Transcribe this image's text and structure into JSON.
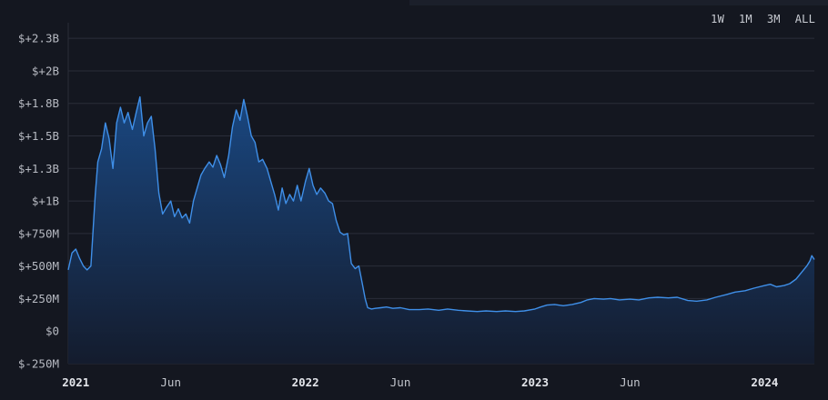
{
  "range_buttons": [
    "1W",
    "1M",
    "3M",
    "ALL"
  ],
  "colors": {
    "background": "#141720",
    "line": "#3f8fe8",
    "area_top": "#1a4a86",
    "area_bottom": "#141c2e",
    "grid": "#2a2e39"
  },
  "chart_data": {
    "type": "area",
    "title": "",
    "xlabel": "",
    "ylabel": "",
    "ylim": [
      -250,
      2300
    ],
    "y_unit": "million USD",
    "y_ticks": [
      {
        "value": -250,
        "label": "$-250M"
      },
      {
        "value": 0,
        "label": "$0"
      },
      {
        "value": 250,
        "label": "$+250M"
      },
      {
        "value": 500,
        "label": "$+500M"
      },
      {
        "value": 750,
        "label": "$+750M"
      },
      {
        "value": 1000,
        "label": "$+1B"
      },
      {
        "value": 1250,
        "label": "$+1.3B"
      },
      {
        "value": 1500,
        "label": "$+1.5B"
      },
      {
        "value": 1750,
        "label": "$+1.8B"
      },
      {
        "value": 2000,
        "label": "$+2B"
      },
      {
        "value": 2250,
        "label": "$+2.3B"
      }
    ],
    "xlim": [
      "2020-12-20",
      "2024-03-20"
    ],
    "x_ticks": [
      {
        "date": "2021-01-01",
        "label": "2021",
        "major": true
      },
      {
        "date": "2021-06-01",
        "label": "Jun",
        "major": false
      },
      {
        "date": "2022-01-01",
        "label": "2022",
        "major": true
      },
      {
        "date": "2022-06-01",
        "label": "Jun",
        "major": false
      },
      {
        "date": "2023-01-01",
        "label": "2023",
        "major": true
      },
      {
        "date": "2023-06-01",
        "label": "Jun",
        "major": false
      },
      {
        "date": "2024-01-01",
        "label": "2024",
        "major": true
      }
    ],
    "grid": true,
    "series": [
      {
        "points": [
          [
            "2020-12-20",
            470
          ],
          [
            "2020-12-26",
            600
          ],
          [
            "2021-01-01",
            630
          ],
          [
            "2021-01-07",
            560
          ],
          [
            "2021-01-13",
            500
          ],
          [
            "2021-01-19",
            470
          ],
          [
            "2021-01-25",
            500
          ],
          [
            "2021-02-01",
            1050
          ],
          [
            "2021-02-05",
            1300
          ],
          [
            "2021-02-11",
            1400
          ],
          [
            "2021-02-17",
            1600
          ],
          [
            "2021-02-23",
            1480
          ],
          [
            "2021-03-01",
            1250
          ],
          [
            "2021-03-07",
            1600
          ],
          [
            "2021-03-13",
            1720
          ],
          [
            "2021-03-19",
            1600
          ],
          [
            "2021-03-25",
            1680
          ],
          [
            "2021-04-01",
            1550
          ],
          [
            "2021-04-07",
            1680
          ],
          [
            "2021-04-13",
            1800
          ],
          [
            "2021-04-19",
            1500
          ],
          [
            "2021-04-25",
            1600
          ],
          [
            "2021-05-01",
            1650
          ],
          [
            "2021-05-07",
            1400
          ],
          [
            "2021-05-13",
            1060
          ],
          [
            "2021-05-19",
            900
          ],
          [
            "2021-05-25",
            950
          ],
          [
            "2021-06-01",
            1000
          ],
          [
            "2021-06-07",
            880
          ],
          [
            "2021-06-13",
            940
          ],
          [
            "2021-06-19",
            870
          ],
          [
            "2021-06-25",
            900
          ],
          [
            "2021-07-01",
            830
          ],
          [
            "2021-07-07",
            1000
          ],
          [
            "2021-07-13",
            1100
          ],
          [
            "2021-07-19",
            1200
          ],
          [
            "2021-07-25",
            1250
          ],
          [
            "2021-08-01",
            1300
          ],
          [
            "2021-08-07",
            1260
          ],
          [
            "2021-08-13",
            1350
          ],
          [
            "2021-08-19",
            1280
          ],
          [
            "2021-08-25",
            1180
          ],
          [
            "2021-09-01",
            1350
          ],
          [
            "2021-09-07",
            1570
          ],
          [
            "2021-09-13",
            1700
          ],
          [
            "2021-09-19",
            1620
          ],
          [
            "2021-09-25",
            1780
          ],
          [
            "2021-10-01",
            1650
          ],
          [
            "2021-10-07",
            1500
          ],
          [
            "2021-10-13",
            1450
          ],
          [
            "2021-10-19",
            1300
          ],
          [
            "2021-10-25",
            1320
          ],
          [
            "2021-11-01",
            1250
          ],
          [
            "2021-11-07",
            1150
          ],
          [
            "2021-11-13",
            1050
          ],
          [
            "2021-11-19",
            930
          ],
          [
            "2021-11-25",
            1100
          ],
          [
            "2021-12-01",
            980
          ],
          [
            "2021-12-07",
            1050
          ],
          [
            "2021-12-13",
            1000
          ],
          [
            "2021-12-19",
            1120
          ],
          [
            "2021-12-25",
            1000
          ],
          [
            "2022-01-01",
            1150
          ],
          [
            "2022-01-07",
            1250
          ],
          [
            "2022-01-13",
            1120
          ],
          [
            "2022-01-19",
            1050
          ],
          [
            "2022-01-25",
            1100
          ],
          [
            "2022-02-01",
            1060
          ],
          [
            "2022-02-07",
            1000
          ],
          [
            "2022-02-13",
            980
          ],
          [
            "2022-02-19",
            850
          ],
          [
            "2022-02-25",
            760
          ],
          [
            "2022-03-03",
            740
          ],
          [
            "2022-03-09",
            750
          ],
          [
            "2022-03-15",
            520
          ],
          [
            "2022-03-21",
            480
          ],
          [
            "2022-03-27",
            500
          ],
          [
            "2022-04-02",
            350
          ],
          [
            "2022-04-06",
            250
          ],
          [
            "2022-04-10",
            180
          ],
          [
            "2022-04-16",
            170
          ],
          [
            "2022-04-22",
            175
          ],
          [
            "2022-05-01",
            180
          ],
          [
            "2022-05-10",
            185
          ],
          [
            "2022-05-20",
            175
          ],
          [
            "2022-06-01",
            180
          ],
          [
            "2022-06-15",
            165
          ],
          [
            "2022-07-01",
            165
          ],
          [
            "2022-07-15",
            170
          ],
          [
            "2022-08-01",
            160
          ],
          [
            "2022-08-15",
            170
          ],
          [
            "2022-09-01",
            160
          ],
          [
            "2022-09-15",
            155
          ],
          [
            "2022-10-01",
            150
          ],
          [
            "2022-10-15",
            155
          ],
          [
            "2022-11-01",
            150
          ],
          [
            "2022-11-15",
            155
          ],
          [
            "2022-12-01",
            150
          ],
          [
            "2022-12-15",
            155
          ],
          [
            "2023-01-01",
            170
          ],
          [
            "2023-01-10",
            185
          ],
          [
            "2023-01-20",
            200
          ],
          [
            "2023-02-01",
            205
          ],
          [
            "2023-02-15",
            195
          ],
          [
            "2023-03-01",
            205
          ],
          [
            "2023-03-15",
            220
          ],
          [
            "2023-03-25",
            240
          ],
          [
            "2023-04-05",
            250
          ],
          [
            "2023-04-20",
            245
          ],
          [
            "2023-05-01",
            250
          ],
          [
            "2023-05-15",
            240
          ],
          [
            "2023-06-01",
            245
          ],
          [
            "2023-06-15",
            240
          ],
          [
            "2023-07-01",
            255
          ],
          [
            "2023-07-15",
            260
          ],
          [
            "2023-08-01",
            255
          ],
          [
            "2023-08-15",
            260
          ],
          [
            "2023-09-01",
            235
          ],
          [
            "2023-09-15",
            230
          ],
          [
            "2023-10-01",
            240
          ],
          [
            "2023-10-15",
            260
          ],
          [
            "2023-11-01",
            280
          ],
          [
            "2023-11-15",
            300
          ],
          [
            "2023-12-01",
            310
          ],
          [
            "2023-12-15",
            330
          ],
          [
            "2024-01-01",
            350
          ],
          [
            "2024-01-10",
            360
          ],
          [
            "2024-01-20",
            340
          ],
          [
            "2024-02-01",
            350
          ],
          [
            "2024-02-10",
            365
          ],
          [
            "2024-02-20",
            400
          ],
          [
            "2024-03-01",
            460
          ],
          [
            "2024-03-08",
            500
          ],
          [
            "2024-03-13",
            540
          ],
          [
            "2024-03-16",
            580
          ],
          [
            "2024-03-20",
            550
          ]
        ]
      }
    ]
  }
}
